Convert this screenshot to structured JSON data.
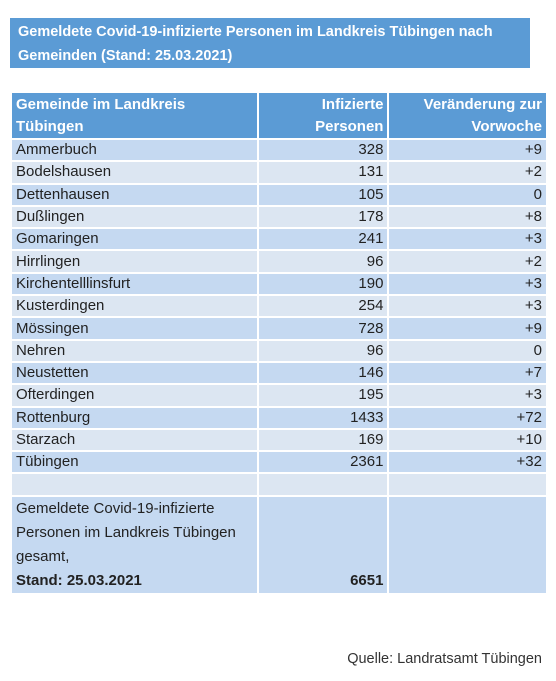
{
  "title": "Gemeldete Covid-19-infizierte Personen im Landkreis Tübingen nach Gemeinden (Stand: 25.03.2021)",
  "table": {
    "header": [
      "Gemeinde im Landkreis Tübingen",
      "Infizierte Personen",
      "Veränderung zur Vorwoche"
    ],
    "rows": [
      [
        "Ammerbuch",
        328,
        "+9"
      ],
      [
        "Bodelshausen",
        131,
        "+2"
      ],
      [
        "Dettenhausen",
        105,
        "0"
      ],
      [
        "Dußlingen",
        178,
        "+8"
      ],
      [
        "Gomaringen",
        241,
        "+3"
      ],
      [
        "Hirrlingen",
        96,
        "+2"
      ],
      [
        "Kirchentelllinsfurt",
        190,
        "+3"
      ],
      [
        "Kusterdingen",
        254,
        "+3"
      ],
      [
        "Mössingen",
        728,
        "+9"
      ],
      [
        "Nehren",
        96,
        "0"
      ],
      [
        "Neustetten",
        146,
        "+7"
      ],
      [
        "Ofterdingen",
        195,
        "+3"
      ],
      [
        "Rottenburg",
        1433,
        "+72"
      ],
      [
        "Starzach",
        169,
        "+10"
      ],
      [
        "Tübingen",
        2361,
        "+32"
      ]
    ],
    "total": {
      "label": "Gemeldete Covid-19-infizierte Personen im Landkreis Tübingen gesamt,",
      "stand": "Stand: 25.03.2021",
      "value": 6651
    }
  },
  "source": "Quelle: Landratsamt Tübingen"
}
